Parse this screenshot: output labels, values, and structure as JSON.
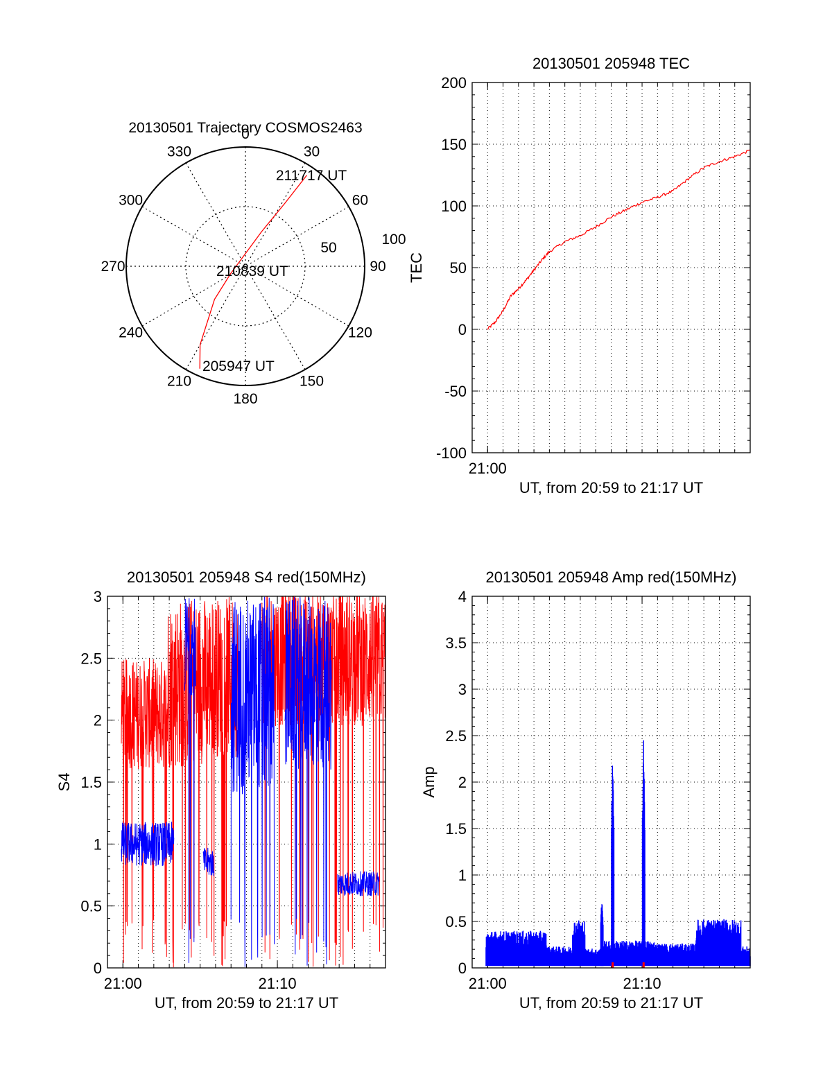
{
  "colors": {
    "red": "#ff0000",
    "blue": "#0000ff",
    "axis": "#000000"
  },
  "chart_data": [
    {
      "id": "polar",
      "type": "polar",
      "title": "20130501 Trajectory COSMOS2463",
      "azimuth_labels": [
        "0",
        "30",
        "60",
        "90",
        "120",
        "150",
        "180",
        "210",
        "240",
        "270",
        "300",
        "330"
      ],
      "elevation_labels": [
        "50",
        "100"
      ],
      "track": {
        "color": "red",
        "points": [
          {
            "az": 204,
            "r": 94
          },
          {
            "az": 210,
            "r": 76
          },
          {
            "az": 223,
            "r": 38
          },
          {
            "az": 243,
            "r": 14
          },
          {
            "az": 25,
            "r": 32
          },
          {
            "az": 32,
            "r": 62
          },
          {
            "az": 34,
            "r": 92
          }
        ]
      },
      "annotations": [
        {
          "text": "211717 UT",
          "az": 36,
          "r": 94
        },
        {
          "text": "210839 UT",
          "az": 125,
          "r": 7
        },
        {
          "text": "205947 UT",
          "az": 184,
          "r": 84
        }
      ]
    },
    {
      "id": "tec",
      "type": "line",
      "title": "20130501 205948 TEC",
      "ylabel": "TEC",
      "xlabel": "UT, from 20:59 to 21:17 UT",
      "xlim": [
        59.0,
        77.0
      ],
      "ylim": [
        -100,
        200
      ],
      "yticks": [
        "-100",
        "-50",
        "0",
        "50",
        "100",
        "150",
        "200"
      ],
      "xtick_labels": [
        "21:00"
      ],
      "series": [
        {
          "name": "TEC",
          "color": "red",
          "x": [
            59.98,
            60.5,
            61,
            61.5,
            62,
            62.5,
            63,
            63.5,
            64,
            65,
            66,
            67,
            68,
            69,
            70,
            71,
            72,
            73,
            74,
            75,
            76,
            77
          ],
          "y": [
            0,
            6,
            15,
            27,
            33,
            40,
            48,
            56,
            63,
            71,
            76,
            83,
            91,
            97,
            103,
            107,
            112,
            122,
            131,
            136,
            140,
            145
          ]
        }
      ]
    },
    {
      "id": "s4",
      "type": "line",
      "title": "20130501 205948 S4 red(150MHz)",
      "ylabel": "S4",
      "xlabel": "UT, from 20:59 to 21:17 UT",
      "xlim": [
        59.0,
        77.0
      ],
      "ylim": [
        0,
        3
      ],
      "yticks": [
        "0",
        "0.5",
        "1",
        "1.5",
        "2",
        "2.5",
        "3"
      ],
      "xtick_labels": [
        "21:00",
        "21:10"
      ],
      "series": [
        {
          "name": "red",
          "color": "red",
          "segments": [
            {
              "x0": 59.9,
              "x1": 62.9,
              "base": 2.05,
              "amp": 0.45
            },
            {
              "x0": 62.9,
              "x1": 65.1,
              "base": 2.3,
              "amp": 0.7
            },
            {
              "x0": 65.1,
              "x1": 67.5,
              "base": 2.35,
              "amp": 0.65
            },
            {
              "x0": 69.0,
              "x1": 77.0,
              "base": 2.5,
              "amp": 0.55
            }
          ]
        },
        {
          "name": "blue",
          "color": "blue",
          "segments": [
            {
              "x0": 59.9,
              "x1": 63.3,
              "base": 1.0,
              "amp": 0.18
            },
            {
              "x0": 64.0,
              "x1": 64.7,
              "base": 2.6,
              "amp": 0.4
            },
            {
              "x0": 65.2,
              "x1": 65.9,
              "base": 0.85,
              "amp": 0.12
            },
            {
              "x0": 67.0,
              "x1": 69.8,
              "base": 2.2,
              "amp": 0.8
            },
            {
              "x0": 70.5,
              "x1": 73.5,
              "base": 2.3,
              "amp": 0.7
            },
            {
              "x0": 73.9,
              "x1": 76.6,
              "base": 0.68,
              "amp": 0.1
            }
          ]
        }
      ]
    },
    {
      "id": "amp",
      "type": "line",
      "title": "20130501 205948 Amp red(150MHz)",
      "ylabel": "Amp",
      "xlabel": "UT, from 20:59 to 21:17 UT",
      "xlim": [
        59.0,
        77.0
      ],
      "ylim": [
        0,
        4
      ],
      "yticks": [
        "0",
        "0.5",
        "1",
        "1.5",
        "2",
        "2.5",
        "3",
        "3.5",
        "4"
      ],
      "xtick_labels": [
        "21:00",
        "21:10"
      ],
      "series": [
        {
          "name": "blue",
          "color": "blue",
          "spikes": [
            {
              "x": 68.1,
              "peak": 2.38
            },
            {
              "x": 70.1,
              "peak": 2.5
            },
            {
              "x": 67.4,
              "peak": 0.8
            }
          ],
          "envelope": [
            {
              "x0": 59.9,
              "x1": 63.8,
              "level": 0.38
            },
            {
              "x0": 63.8,
              "x1": 65.5,
              "level": 0.22
            },
            {
              "x0": 65.5,
              "x1": 66.3,
              "level": 0.5
            },
            {
              "x0": 66.3,
              "x1": 67.3,
              "level": 0.2
            },
            {
              "x0": 67.3,
              "x1": 70.8,
              "level": 0.28
            },
            {
              "x0": 70.8,
              "x1": 73.5,
              "level": 0.25
            },
            {
              "x0": 73.5,
              "x1": 76.4,
              "level": 0.5
            },
            {
              "x0": 76.4,
              "x1": 77.0,
              "level": 0.22
            }
          ]
        }
      ]
    }
  ]
}
